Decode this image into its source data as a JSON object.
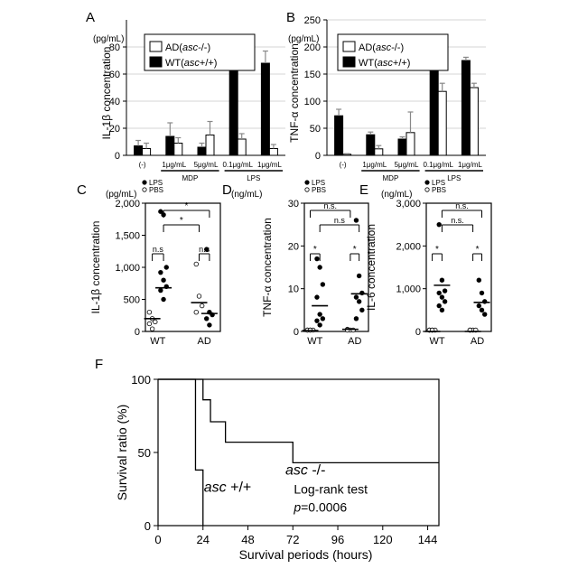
{
  "chart_data": [
    {
      "id": "A",
      "type": "bar",
      "panel_label": "A",
      "unit_label": "(pg/mL)",
      "ylabel": "IL-1β concentration",
      "ylim": [
        0,
        100
      ],
      "yticks": [
        0,
        20,
        40,
        60,
        80
      ],
      "categories": [
        "(-)",
        "1μg/mL",
        "5μg/mL",
        "0.1μg/mL",
        "1μg/mL"
      ],
      "groups": [
        {
          "label": "MDP",
          "from": 1,
          "to": 2
        },
        {
          "label": "LPS",
          "from": 3,
          "to": 4
        }
      ],
      "legend": [
        {
          "pre": "AD(",
          "ital": "asc",
          "post": "-/-)"
        },
        {
          "pre": "WT(",
          "ital": "asc",
          "post": "+/+)"
        }
      ],
      "series": [
        {
          "color": "#000000",
          "values": [
            7,
            14,
            6,
            88,
            68
          ],
          "errors": [
            4,
            10,
            3,
            0,
            9
          ]
        },
        {
          "color": "#ffffff",
          "values": [
            5,
            9,
            15,
            12,
            5
          ],
          "errors": [
            4,
            4,
            10,
            4,
            3
          ]
        }
      ]
    },
    {
      "id": "B",
      "type": "bar",
      "panel_label": "B",
      "unit_label": "(pg/mL)",
      "ylabel": "TNF-α concentration",
      "ylim": [
        0,
        250
      ],
      "yticks": [
        0,
        50,
        100,
        150,
        200,
        250
      ],
      "categories": [
        "(-)",
        "1μg/mL",
        "5μg/mL",
        "0.1μg/mL",
        "1μg/mL"
      ],
      "groups": [
        {
          "label": "MDP",
          "from": 1,
          "to": 2
        },
        {
          "label": "LPS",
          "from": 3,
          "to": 4
        }
      ],
      "legend": [
        {
          "pre": "AD(",
          "ital": "asc",
          "post": "-/-)"
        },
        {
          "pre": "WT(",
          "ital": "asc",
          "post": "+/+)"
        }
      ],
      "series": [
        {
          "color": "#000000",
          "values": [
            73,
            38,
            30,
            158,
            175
          ],
          "errors": [
            12,
            5,
            4,
            35,
            6
          ]
        },
        {
          "color": "#ffffff",
          "values": [
            2,
            12,
            42,
            118,
            125
          ],
          "errors": [
            1,
            6,
            38,
            15,
            8
          ]
        }
      ]
    },
    {
      "id": "C",
      "type": "scatter",
      "panel_label": "C",
      "unit_label": "(pg/mL)",
      "ylabel": "IL-1β concentration",
      "ylim": [
        0,
        2000
      ],
      "yticks": [
        0,
        500,
        1000,
        1500,
        2000
      ],
      "yticklabels": [
        "0",
        "500",
        "1,000",
        "1,500",
        "2,000"
      ],
      "legend": [
        "LPS",
        "PBS"
      ],
      "categories": [
        "WT",
        "AD"
      ],
      "groups": [
        {
          "fill": "#ffffff",
          "pos": 0.22,
          "values": [
            300,
            200,
            150,
            120,
            40
          ],
          "mean": 200
        },
        {
          "fill": "#000000",
          "pos": 0.58,
          "values": [
            1870,
            1820,
            1000,
            920,
            800,
            700,
            640,
            500
          ],
          "mean": 680
        },
        {
          "fill": "#ffffff",
          "pos": 1.72,
          "values": [
            1050,
            550,
            400,
            300
          ],
          "mean": 450
        },
        {
          "fill": "#000000",
          "pos": 2.05,
          "values": [
            1280,
            300,
            260,
            200,
            100
          ],
          "mean": 280
        }
      ],
      "brackets": [
        {
          "from": 0.58,
          "to": 2.05,
          "label": "*"
        },
        {
          "from": 0.58,
          "to": 1.72,
          "label": "*"
        },
        {
          "from": 0.22,
          "to": 0.58,
          "label": "n.s"
        },
        {
          "from": 1.72,
          "to": 2.05,
          "label": "n.s"
        }
      ]
    },
    {
      "id": "D",
      "type": "scatter",
      "panel_label": "D",
      "unit_label": "(ng/mL)",
      "ylabel": "TNF-α concentration",
      "ylim": [
        0,
        30
      ],
      "yticks": [
        0,
        10,
        20,
        30
      ],
      "legend": [
        "LPS",
        "PBS"
      ],
      "categories": [
        "WT",
        "AD"
      ],
      "groups": [
        {
          "fill": "#ffffff",
          "pos": 0.22,
          "values": [
            0.2,
            0.2,
            0.2,
            0.2,
            0.2
          ],
          "mean": 0.2
        },
        {
          "fill": "#000000",
          "pos": 0.58,
          "values": [
            17,
            15,
            11,
            8,
            4,
            3,
            2.5,
            1.5
          ],
          "mean": 6
        },
        {
          "fill": "#ffffff",
          "pos": 1.72,
          "values": [
            0.5,
            0.3,
            0.2,
            0.1
          ],
          "mean": 0.5
        },
        {
          "fill": "#000000",
          "pos": 2.05,
          "values": [
            26,
            13,
            9,
            8,
            7,
            5,
            3
          ],
          "mean": 8.8
        }
      ],
      "brackets": [
        {
          "from": 0.22,
          "to": 1.72,
          "label": "n.s."
        },
        {
          "from": 0.58,
          "to": 2.05,
          "label": "n.s"
        },
        {
          "from": 0.22,
          "to": 0.58,
          "label": "*"
        },
        {
          "from": 1.72,
          "to": 2.05,
          "label": "*"
        }
      ]
    },
    {
      "id": "E",
      "type": "scatter",
      "panel_label": "E",
      "unit_label": "(ng/mL)",
      "ylabel": "IL-6 concentration",
      "ylim": [
        0,
        3000
      ],
      "yticks": [
        0,
        1000,
        2000,
        3000
      ],
      "yticklabels": [
        "0",
        "1,000",
        "2,000",
        "3,000"
      ],
      "legend": [
        "LPS",
        "PBS"
      ],
      "categories": [
        "WT",
        "AD"
      ],
      "groups": [
        {
          "fill": "#ffffff",
          "pos": 0.22,
          "values": [
            0,
            0,
            0,
            0,
            0
          ],
          "mean": 0
        },
        {
          "fill": "#000000",
          "pos": 0.58,
          "values": [
            2500,
            1200,
            950,
            900,
            800,
            700,
            600,
            500
          ],
          "mean": 1080
        },
        {
          "fill": "#ffffff",
          "pos": 1.72,
          "values": [
            0,
            0,
            0,
            0
          ],
          "mean": 0
        },
        {
          "fill": "#000000",
          "pos": 2.05,
          "values": [
            1200,
            900,
            700,
            600,
            500,
            400
          ],
          "mean": 680
        }
      ],
      "brackets": [
        {
          "from": 0.58,
          "to": 2.05,
          "label": "n.s."
        },
        {
          "from": 0.58,
          "to": 1.72,
          "label": "n.s."
        },
        {
          "from": 0.22,
          "to": 0.58,
          "label": "*"
        },
        {
          "from": 1.72,
          "to": 2.05,
          "label": "*"
        }
      ]
    },
    {
      "id": "F",
      "type": "line",
      "panel_label": "F",
      "xlabel": "Survival periods (hours)",
      "ylabel": "Survival ratio (%)",
      "xlim": [
        0,
        150
      ],
      "ylim": [
        0,
        100
      ],
      "xticks": [
        0,
        24,
        48,
        72,
        96,
        120,
        144
      ],
      "yticks": [
        0,
        50,
        100
      ],
      "series": [
        {
          "ital": "asc",
          "post": " -/-",
          "x": [
            0,
            20,
            24,
            28,
            32,
            36,
            72,
            150
          ],
          "y": [
            100,
            100,
            86,
            71,
            71,
            57,
            43,
            43
          ]
        },
        {
          "ital": "asc",
          "post": " +/+",
          "x": [
            0,
            16,
            20,
            24
          ],
          "y": [
            100,
            100,
            38,
            0
          ]
        }
      ],
      "annotation": {
        "line1": "Log-rank test",
        "p_ital": "p",
        "p_value": "=0.0006"
      }
    }
  ]
}
